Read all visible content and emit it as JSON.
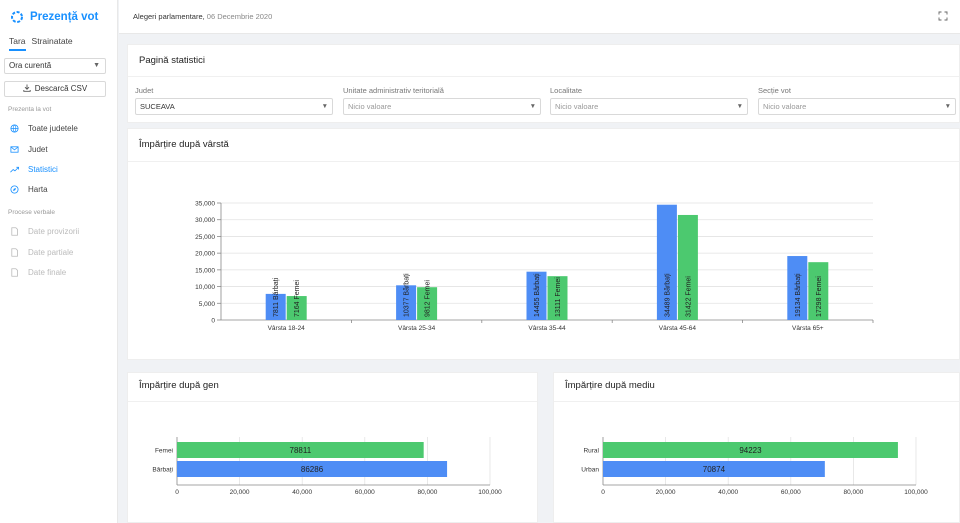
{
  "app": {
    "title": "Prezență vot"
  },
  "sidebar": {
    "tabs": [
      "Tara",
      "Strainatate"
    ],
    "moment_select": "Ora curentă",
    "csv_button": "Descarcă CSV",
    "section_presence": "Prezenta la vot",
    "nav": [
      {
        "label": "Toate judetele",
        "icon": "globe-icon"
      },
      {
        "label": "Judet",
        "icon": "mail-icon"
      },
      {
        "label": "Statistici",
        "icon": "trend-icon"
      },
      {
        "label": "Harta",
        "icon": "compass-icon"
      }
    ],
    "section_verbal": "Procese verbale",
    "verbal_nav": [
      {
        "label": "Date provizorii",
        "icon": "file-icon"
      },
      {
        "label": "Date partiale",
        "icon": "file-icon"
      },
      {
        "label": "Date finale",
        "icon": "file-icon"
      }
    ]
  },
  "header": {
    "election": "Alegeri parlamentare, ",
    "date": "06 Decembrie 2020"
  },
  "stats_page": {
    "title": "Pagină statistici",
    "filters": [
      {
        "label": "Judet",
        "value": "SUCEAVA",
        "empty": false
      },
      {
        "label": "Unitate administrativ teritorială",
        "value": "Nicio valoare",
        "empty": true
      },
      {
        "label": "Localitate",
        "value": "Nicio valoare",
        "empty": true
      },
      {
        "label": "Secție vot",
        "value": "Nicio valoare",
        "empty": true
      }
    ]
  },
  "age_card": {
    "title": "Împărțire după vârstă"
  },
  "gender_card": {
    "title": "Împărțire după gen"
  },
  "medium_card": {
    "title": "Împărțire după mediu"
  },
  "colors": {
    "blue": "#4e8df5",
    "green": "#4cc96f",
    "accent": "#1890ff"
  },
  "chart_data": [
    {
      "type": "bar",
      "title": "Împărțire după vârstă",
      "categories": [
        "Vârsta 18-24",
        "Vârsta 25-34",
        "Vârsta 35-44",
        "Vârsta 45-64",
        "Vârsta 65+"
      ],
      "series": [
        {
          "name": "Bărbați",
          "values": [
            7811,
            10377,
            14455,
            34489,
            19134
          ]
        },
        {
          "name": "Femei",
          "values": [
            7164,
            9812,
            13111,
            31422,
            17298
          ]
        }
      ],
      "bar_labels": [
        [
          "7811 Bărbați",
          "10377 Bărbați",
          "14455 Bărbați",
          "34489 Bărbați",
          "19134 Bărbați"
        ],
        [
          "7164 Femei",
          "9812 Femei",
          "13111 Femei",
          "31422 Femei",
          "17298 Femei"
        ]
      ],
      "yticks": [
        "0",
        "5,000",
        "10,000",
        "15,000",
        "20,000",
        "25,000",
        "30,000",
        "35,000"
      ],
      "ylim": [
        0,
        35000
      ],
      "grid": true
    },
    {
      "type": "bar",
      "orientation": "horizontal",
      "title": "Împărțire după gen",
      "categories": [
        "Femei",
        "Bărbați"
      ],
      "values": [
        78811,
        86286
      ],
      "value_labels": [
        "78811",
        "86286"
      ],
      "xticks": [
        "0",
        "20,000",
        "40,000",
        "60,000",
        "80,000",
        "100,000"
      ],
      "xlim": [
        0,
        100000
      ]
    },
    {
      "type": "bar",
      "orientation": "horizontal",
      "title": "Împărțire după mediu",
      "categories": [
        "Rural",
        "Urban"
      ],
      "values": [
        94223,
        70874
      ],
      "value_labels": [
        "94223",
        "70874"
      ],
      "xticks": [
        "0",
        "20,000",
        "40,000",
        "60,000",
        "80,000",
        "100,000"
      ],
      "xlim": [
        0,
        100000
      ]
    }
  ]
}
